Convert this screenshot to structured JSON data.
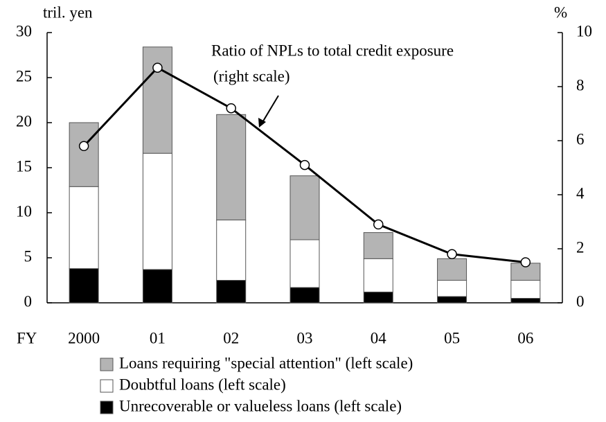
{
  "chart_data": {
    "type": "bar",
    "stacked": true,
    "y_unit_label": "tril. yen",
    "y2_unit_label": "%",
    "x_label": "FY",
    "categories": [
      "2000",
      "01",
      "02",
      "03",
      "04",
      "05",
      "06"
    ],
    "series": [
      {
        "name": "Unrecoverable or valueless loans (left scale)",
        "color": "#000000",
        "values": [
          3.8,
          3.7,
          2.5,
          1.7,
          1.2,
          0.7,
          0.5
        ]
      },
      {
        "name": "Doubtful loans (left scale)",
        "color": "#ffffff",
        "values": [
          9.1,
          12.9,
          6.7,
          5.3,
          3.7,
          1.8,
          2.0
        ]
      },
      {
        "name": "Loans requiring \"special attention\" (left scale)",
        "color": "#b4b4b4",
        "values": [
          7.1,
          11.8,
          11.7,
          7.1,
          2.9,
          2.4,
          1.9
        ]
      },
      {
        "name": "Ratio of NPLs to total credit exposure",
        "type": "line",
        "axis": "y2",
        "color": "#000000",
        "values": [
          5.8,
          8.7,
          7.2,
          5.1,
          2.9,
          1.8,
          1.5
        ]
      }
    ],
    "annotation": [
      "Ratio of NPLs to total credit exposure",
      "(right scale)"
    ],
    "ylim": [
      0,
      30
    ],
    "yticks": [
      0,
      5,
      10,
      15,
      20,
      25,
      30
    ],
    "y2lim": [
      0,
      10
    ],
    "y2ticks": [
      0,
      2,
      4,
      6,
      8,
      10
    ],
    "grid": false
  }
}
